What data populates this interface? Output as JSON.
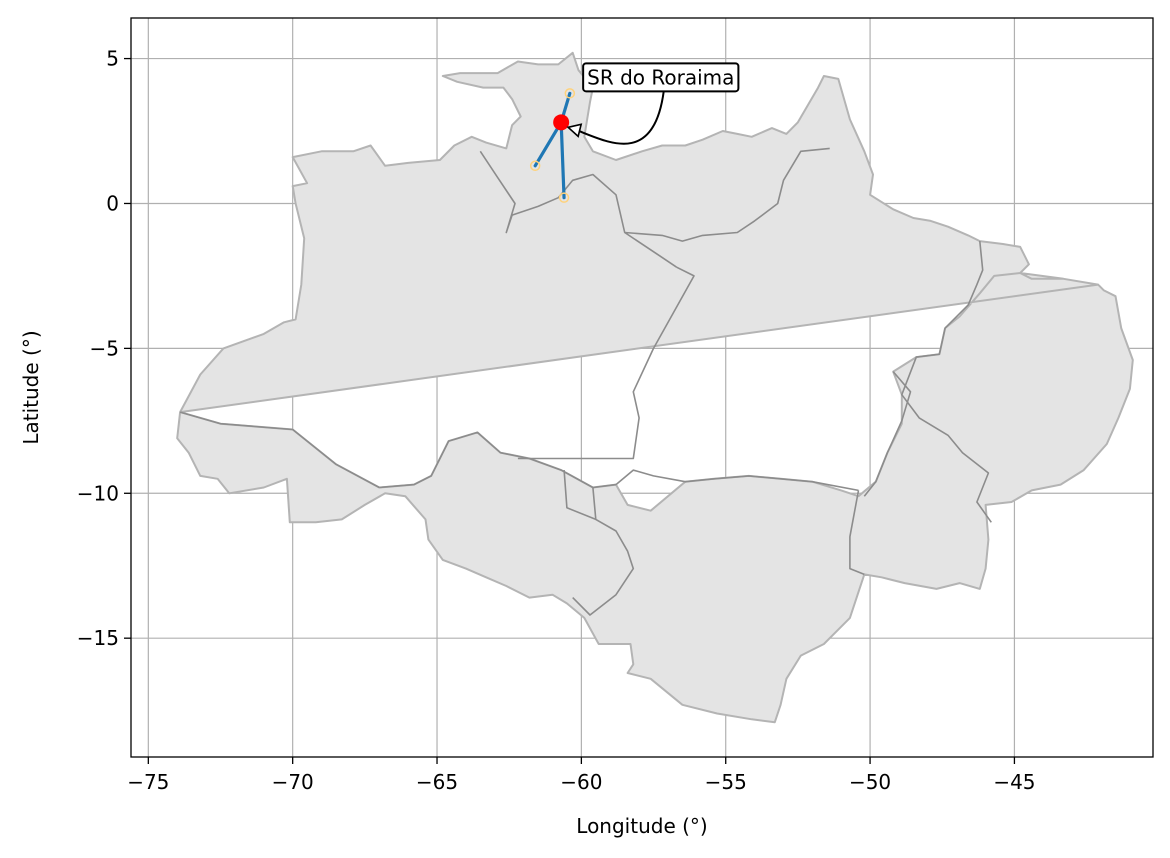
{
  "chart_data": {
    "type": "map",
    "xlabel": "Longitude (°)",
    "ylabel": "Latitude (°)",
    "xlim": [
      -75.6,
      -40.2
    ],
    "ylim": [
      -19.1,
      6.4
    ],
    "grid": true,
    "x_ticks": [
      {
        "value": -75,
        "label": "−75"
      },
      {
        "value": -70,
        "label": "−70"
      },
      {
        "value": -65,
        "label": "−65"
      },
      {
        "value": -60,
        "label": "−60"
      },
      {
        "value": -55,
        "label": "−55"
      },
      {
        "value": -50,
        "label": "−50"
      },
      {
        "value": -45,
        "label": "−45"
      }
    ],
    "y_ticks": [
      {
        "value": 5,
        "label": "5"
      },
      {
        "value": 0,
        "label": "0"
      },
      {
        "value": -5,
        "label": "−5"
      },
      {
        "value": -10,
        "label": "−10"
      },
      {
        "value": -15,
        "label": "−15"
      }
    ],
    "region_outline": [
      [
        -73.9,
        -7.2
      ],
      [
        -72.5,
        -7.6
      ],
      [
        -70.0,
        -7.8
      ],
      [
        -68.5,
        -9.0
      ],
      [
        -67.0,
        -9.8
      ],
      [
        -65.8,
        -9.7
      ],
      [
        -65.2,
        -9.4
      ],
      [
        -64.6,
        -8.2
      ],
      [
        -63.6,
        -7.9
      ],
      [
        -62.8,
        -8.6
      ],
      [
        -61.8,
        -8.8
      ],
      [
        -60.7,
        -9.2
      ],
      [
        -59.6,
        -9.8
      ],
      [
        -58.8,
        -9.7
      ],
      [
        -58.4,
        -10.4
      ],
      [
        -57.6,
        -10.6
      ],
      [
        -56.4,
        -9.6
      ],
      [
        -55.4,
        -9.5
      ],
      [
        -54.2,
        -9.4
      ],
      [
        -53.1,
        -9.5
      ],
      [
        -52.0,
        -9.6
      ],
      [
        -51.0,
        -9.9
      ],
      [
        -50.4,
        -10.1
      ],
      [
        -49.8,
        -9.6
      ],
      [
        -49.4,
        -8.6
      ],
      [
        -48.9,
        -7.6
      ],
      [
        -48.9,
        -6.6
      ],
      [
        -49.2,
        -5.8
      ],
      [
        -48.4,
        -5.3
      ],
      [
        -47.6,
        -5.2
      ],
      [
        -47.4,
        -4.3
      ],
      [
        -46.9,
        -3.9
      ],
      [
        -46.2,
        -3.1
      ],
      [
        -45.7,
        -2.5
      ],
      [
        -44.8,
        -2.4
      ],
      [
        -44.4,
        -2.6
      ],
      [
        -43.3,
        -2.6
      ],
      [
        -42.1,
        -2.8
      ],
      [
        -41.9,
        -3.0
      ],
      [
        -41.5,
        -3.2
      ],
      [
        -41.3,
        -4.3
      ],
      [
        -40.9,
        -5.4
      ],
      [
        -41.0,
        -6.4
      ],
      [
        -41.4,
        -7.4
      ],
      [
        -41.8,
        -8.3
      ],
      [
        -42.6,
        -9.2
      ],
      [
        -43.4,
        -9.7
      ],
      [
        -44.4,
        -9.9
      ],
      [
        -45.1,
        -10.3
      ],
      [
        -46.0,
        -10.4
      ],
      [
        -45.9,
        -11.6
      ],
      [
        -46.0,
        -12.6
      ],
      [
        -46.2,
        -13.3
      ],
      [
        -46.9,
        -13.1
      ],
      [
        -47.7,
        -13.3
      ],
      [
        -48.8,
        -13.1
      ],
      [
        -49.6,
        -12.9
      ],
      [
        -50.2,
        -12.8
      ],
      [
        -50.7,
        -14.3
      ],
      [
        -51.6,
        -15.2
      ],
      [
        -52.4,
        -15.6
      ],
      [
        -52.9,
        -16.4
      ],
      [
        -53.1,
        -17.3
      ],
      [
        -53.3,
        -17.9
      ],
      [
        -54.1,
        -17.8
      ],
      [
        -55.3,
        -17.6
      ],
      [
        -56.5,
        -17.3
      ],
      [
        -57.6,
        -16.4
      ],
      [
        -58.4,
        -16.2
      ],
      [
        -58.2,
        -15.9
      ],
      [
        -58.3,
        -15.2
      ],
      [
        -59.4,
        -15.2
      ],
      [
        -59.9,
        -14.3
      ],
      [
        -60.5,
        -13.8
      ],
      [
        -61.0,
        -13.5
      ],
      [
        -61.8,
        -13.6
      ],
      [
        -62.6,
        -13.2
      ],
      [
        -63.3,
        -12.9
      ],
      [
        -64.0,
        -12.6
      ],
      [
        -64.8,
        -12.3
      ],
      [
        -65.3,
        -11.6
      ],
      [
        -65.4,
        -10.9
      ],
      [
        -66.1,
        -10.1
      ],
      [
        -66.8,
        -10.0
      ],
      [
        -67.5,
        -10.4
      ],
      [
        -68.3,
        -10.9
      ],
      [
        -69.2,
        -11.0
      ],
      [
        -70.1,
        -11.0
      ],
      [
        -70.2,
        -9.5
      ],
      [
        -71.0,
        -9.8
      ],
      [
        -72.2,
        -10.0
      ],
      [
        -72.6,
        -9.5
      ],
      [
        -73.2,
        -9.4
      ],
      [
        -73.6,
        -8.6
      ],
      [
        -74.0,
        -8.1
      ],
      [
        -73.9,
        -7.2
      ],
      [
        -73.2,
        -5.9
      ],
      [
        -72.4,
        -5.0
      ],
      [
        -71.0,
        -4.5
      ],
      [
        -70.3,
        -4.1
      ],
      [
        -69.9,
        -4.0
      ],
      [
        -69.7,
        -2.8
      ],
      [
        -69.6,
        -1.2
      ],
      [
        -69.9,
        0.0
      ],
      [
        -70.0,
        0.6
      ],
      [
        -69.5,
        0.7
      ],
      [
        -70.0,
        1.6
      ],
      [
        -69.0,
        1.8
      ],
      [
        -67.9,
        1.8
      ],
      [
        -67.3,
        2.0
      ],
      [
        -66.8,
        1.3
      ],
      [
        -66.0,
        1.4
      ],
      [
        -64.9,
        1.5
      ],
      [
        -64.4,
        2.0
      ],
      [
        -63.8,
        2.3
      ],
      [
        -63.3,
        2.1
      ],
      [
        -62.6,
        1.9
      ],
      [
        -62.4,
        2.7
      ],
      [
        -62.1,
        3.0
      ],
      [
        -62.4,
        3.6
      ],
      [
        -62.7,
        4.0
      ],
      [
        -63.4,
        4.0
      ],
      [
        -64.3,
        4.2
      ],
      [
        -64.8,
        4.4
      ],
      [
        -64.2,
        4.5
      ],
      [
        -62.9,
        4.5
      ],
      [
        -62.2,
        4.9
      ],
      [
        -61.5,
        4.8
      ],
      [
        -60.8,
        4.8
      ],
      [
        -60.3,
        5.2
      ],
      [
        -60.1,
        4.6
      ],
      [
        -59.6,
        4.0
      ],
      [
        -59.7,
        3.5
      ],
      [
        -59.9,
        2.3
      ],
      [
        -59.6,
        1.8
      ],
      [
        -58.8,
        1.5
      ],
      [
        -57.9,
        1.8
      ],
      [
        -57.2,
        2.0
      ],
      [
        -56.4,
        2.0
      ],
      [
        -55.8,
        2.2
      ],
      [
        -55.1,
        2.5
      ],
      [
        -54.6,
        2.4
      ],
      [
        -54.1,
        2.3
      ],
      [
        -53.4,
        2.6
      ],
      [
        -52.9,
        2.4
      ],
      [
        -52.5,
        2.8
      ],
      [
        -51.8,
        4.0
      ],
      [
        -51.6,
        4.4
      ],
      [
        -51.1,
        4.3
      ],
      [
        -50.7,
        2.9
      ],
      [
        -50.2,
        1.8
      ],
      [
        -49.9,
        1.0
      ],
      [
        -50.0,
        0.3
      ],
      [
        -49.2,
        -0.2
      ],
      [
        -48.5,
        -0.5
      ],
      [
        -47.9,
        -0.6
      ],
      [
        -47.3,
        -0.8
      ],
      [
        -46.6,
        -1.1
      ],
      [
        -46.2,
        -1.3
      ],
      [
        -45.4,
        -1.4
      ],
      [
        -44.8,
        -1.5
      ],
      [
        -44.5,
        -2.1
      ],
      [
        -44.8,
        -2.4
      ],
      [
        -43.3,
        -2.6
      ],
      [
        -42.1,
        -2.8
      ]
    ],
    "state_borders": [
      [
        [
          -73.9,
          -7.2
        ],
        [
          -72.5,
          -7.6
        ],
        [
          -70.0,
          -7.8
        ],
        [
          -68.5,
          -9.0
        ],
        [
          -67.0,
          -9.8
        ]
      ],
      [
        [
          -67.0,
          -9.8
        ],
        [
          -65.8,
          -9.7
        ],
        [
          -65.2,
          -9.4
        ],
        [
          -64.6,
          -8.2
        ],
        [
          -63.6,
          -7.9
        ],
        [
          -62.8,
          -8.6
        ],
        [
          -61.8,
          -8.8
        ],
        [
          -60.7,
          -9.2
        ],
        [
          -59.6,
          -9.8
        ],
        [
          -58.8,
          -9.7
        ]
      ],
      [
        [
          -62.2,
          -8.8
        ],
        [
          -58.2,
          -8.8
        ],
        [
          -58.0,
          -7.4
        ],
        [
          -58.2,
          -6.5
        ],
        [
          -57.5,
          -5.0
        ],
        [
          -56.1,
          -2.5
        ],
        [
          -56.7,
          -2.2
        ]
      ],
      [
        [
          -56.7,
          -2.2
        ],
        [
          -57.3,
          -1.8
        ],
        [
          -58.5,
          -1.0
        ],
        [
          -58.8,
          0.3
        ],
        [
          -59.6,
          1.0
        ],
        [
          -60.3,
          0.8
        ],
        [
          -60.8,
          0.2
        ],
        [
          -61.5,
          -0.1
        ],
        [
          -62.4,
          -0.4
        ],
        [
          -62.6,
          -1.0
        ],
        [
          -62.3,
          0.0
        ],
        [
          -62.9,
          0.9
        ],
        [
          -63.5,
          1.8
        ]
      ],
      [
        [
          -58.5,
          -1.0
        ],
        [
          -57.2,
          -1.1
        ],
        [
          -56.5,
          -1.3
        ],
        [
          -55.8,
          -1.1
        ],
        [
          -54.6,
          -1.0
        ],
        [
          -54.0,
          -0.6
        ],
        [
          -53.2,
          0.0
        ],
        [
          -53.0,
          0.8
        ],
        [
          -52.4,
          1.8
        ],
        [
          -51.4,
          1.9
        ]
      ],
      [
        [
          -58.8,
          -9.7
        ],
        [
          -58.2,
          -9.2
        ],
        [
          -57.5,
          -9.4
        ],
        [
          -56.4,
          -9.6
        ],
        [
          -55.4,
          -9.5
        ],
        [
          -54.2,
          -9.4
        ],
        [
          -53.1,
          -9.5
        ],
        [
          -52.0,
          -9.6
        ],
        [
          -50.4,
          -9.9
        ]
      ],
      [
        [
          -50.4,
          -9.9
        ],
        [
          -50.7,
          -11.5
        ],
        [
          -50.7,
          -12.6
        ],
        [
          -50.2,
          -12.8
        ]
      ],
      [
        [
          -49.2,
          -5.8
        ],
        [
          -48.6,
          -6.5
        ],
        [
          -48.9,
          -7.5
        ],
        [
          -49.4,
          -8.6
        ],
        [
          -49.8,
          -9.6
        ],
        [
          -50.2,
          -10.1
        ]
      ],
      [
        [
          -47.4,
          -4.3
        ],
        [
          -47.6,
          -5.2
        ],
        [
          -48.4,
          -5.3
        ],
        [
          -48.9,
          -6.6
        ],
        [
          -48.3,
          -7.4
        ],
        [
          -47.3,
          -8.0
        ],
        [
          -46.8,
          -8.6
        ],
        [
          -45.9,
          -9.3
        ],
        [
          -46.3,
          -10.3
        ],
        [
          -45.8,
          -11.0
        ]
      ],
      [
        [
          -46.2,
          -1.3
        ],
        [
          -46.1,
          -2.3
        ],
        [
          -46.3,
          -2.8
        ],
        [
          -46.6,
          -3.5
        ],
        [
          -47.4,
          -4.3
        ]
      ],
      [
        [
          -59.6,
          -9.8
        ],
        [
          -59.5,
          -10.9
        ],
        [
          -58.8,
          -11.3
        ],
        [
          -58.4,
          -12.0
        ],
        [
          -58.2,
          -12.6
        ],
        [
          -58.8,
          -13.5
        ],
        [
          -59.7,
          -14.2
        ],
        [
          -60.3,
          -13.6
        ]
      ],
      [
        [
          -60.6,
          -9.2
        ],
        [
          -60.5,
          -10.5
        ],
        [
          -59.5,
          -10.9
        ]
      ]
    ],
    "station": {
      "name": "SR do Roraima",
      "lon": -60.7,
      "lat": 2.8
    },
    "links": [
      {
        "from": [
          -60.7,
          2.8
        ],
        "to": [
          -60.4,
          3.8
        ]
      },
      {
        "from": [
          -60.7,
          2.8
        ],
        "to": [
          -61.6,
          1.3
        ]
      },
      {
        "from": [
          -60.7,
          2.8
        ],
        "to": [
          -60.6,
          0.2
        ]
      }
    ],
    "annotation": {
      "text": "SR do Roraima",
      "text_lon": -59.8,
      "text_lat": 4.3
    },
    "colors": {
      "land_fill": "#e4e4e4",
      "land_edge": "#b4b4b4",
      "border": "#8c8c8c",
      "grid": "#b0b0b0",
      "link": "#1f77b4",
      "station": "#ff0000",
      "endpoint": "#ffd27a"
    }
  }
}
